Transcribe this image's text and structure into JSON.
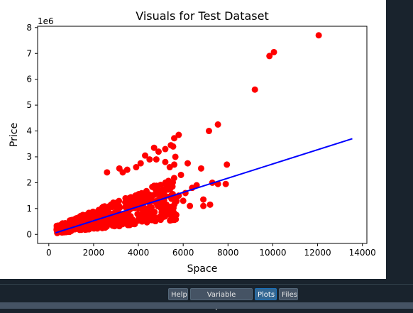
{
  "tabs": [
    {
      "label": "Help",
      "active": false
    },
    {
      "label": "Variable Explorer",
      "active": false
    },
    {
      "label": "Plots",
      "active": true
    },
    {
      "label": "Files",
      "active": false
    }
  ],
  "chart_data": {
    "type": "scatter",
    "title": "Visuals for Test Dataset",
    "xlabel": "Space",
    "ylabel": "Price",
    "y_offset_label": "1e6",
    "xlim": [
      -500,
      14200
    ],
    "ylim": [
      -0.35,
      8.05
    ],
    "xticks": [
      0,
      2000,
      4000,
      6000,
      8000,
      10000,
      12000,
      14000
    ],
    "yticks": [
      0,
      1,
      2,
      3,
      4,
      5,
      6,
      7,
      8
    ],
    "grid": false,
    "scatter_color": "#ff0000",
    "line_color": "#0000ff",
    "series": [
      {
        "type": "scatter",
        "points": [
          [
            12050,
            7.7
          ],
          [
            10050,
            7.05
          ],
          [
            9850,
            6.9
          ],
          [
            9200,
            5.6
          ],
          [
            7550,
            4.25
          ],
          [
            7150,
            4.0
          ],
          [
            5800,
            3.85
          ],
          [
            5600,
            3.72
          ],
          [
            6200,
            2.75
          ],
          [
            6800,
            2.55
          ],
          [
            6900,
            1.35
          ],
          [
            7300,
            2.0
          ],
          [
            7550,
            1.95
          ],
          [
            7900,
            1.95
          ],
          [
            7950,
            2.7
          ],
          [
            6900,
            1.1
          ],
          [
            6600,
            1.9
          ],
          [
            7200,
            1.15
          ],
          [
            5200,
            3.3
          ],
          [
            5450,
            3.45
          ],
          [
            5550,
            3.4
          ],
          [
            5650,
            3.0
          ],
          [
            5900,
            2.3
          ],
          [
            4700,
            3.35
          ],
          [
            4900,
            3.2
          ],
          [
            4500,
            2.9
          ],
          [
            4300,
            3.05
          ],
          [
            4100,
            2.75
          ],
          [
            3900,
            2.6
          ],
          [
            3500,
            2.5
          ],
          [
            3150,
            2.55
          ],
          [
            3300,
            2.4
          ],
          [
            2600,
            2.4
          ],
          [
            5400,
            2.6
          ],
          [
            5600,
            2.7
          ],
          [
            5200,
            2.8
          ],
          [
            4800,
            2.9
          ],
          [
            6100,
            1.6
          ],
          [
            6000,
            1.3
          ],
          [
            6300,
            1.1
          ],
          [
            5800,
            1.5
          ],
          [
            6400,
            1.8
          ],
          [
            5700,
            1.3
          ]
        ]
      },
      {
        "type": "line",
        "points": [
          [
            300,
            0.06
          ],
          [
            13550,
            3.7
          ]
        ]
      }
    ]
  }
}
